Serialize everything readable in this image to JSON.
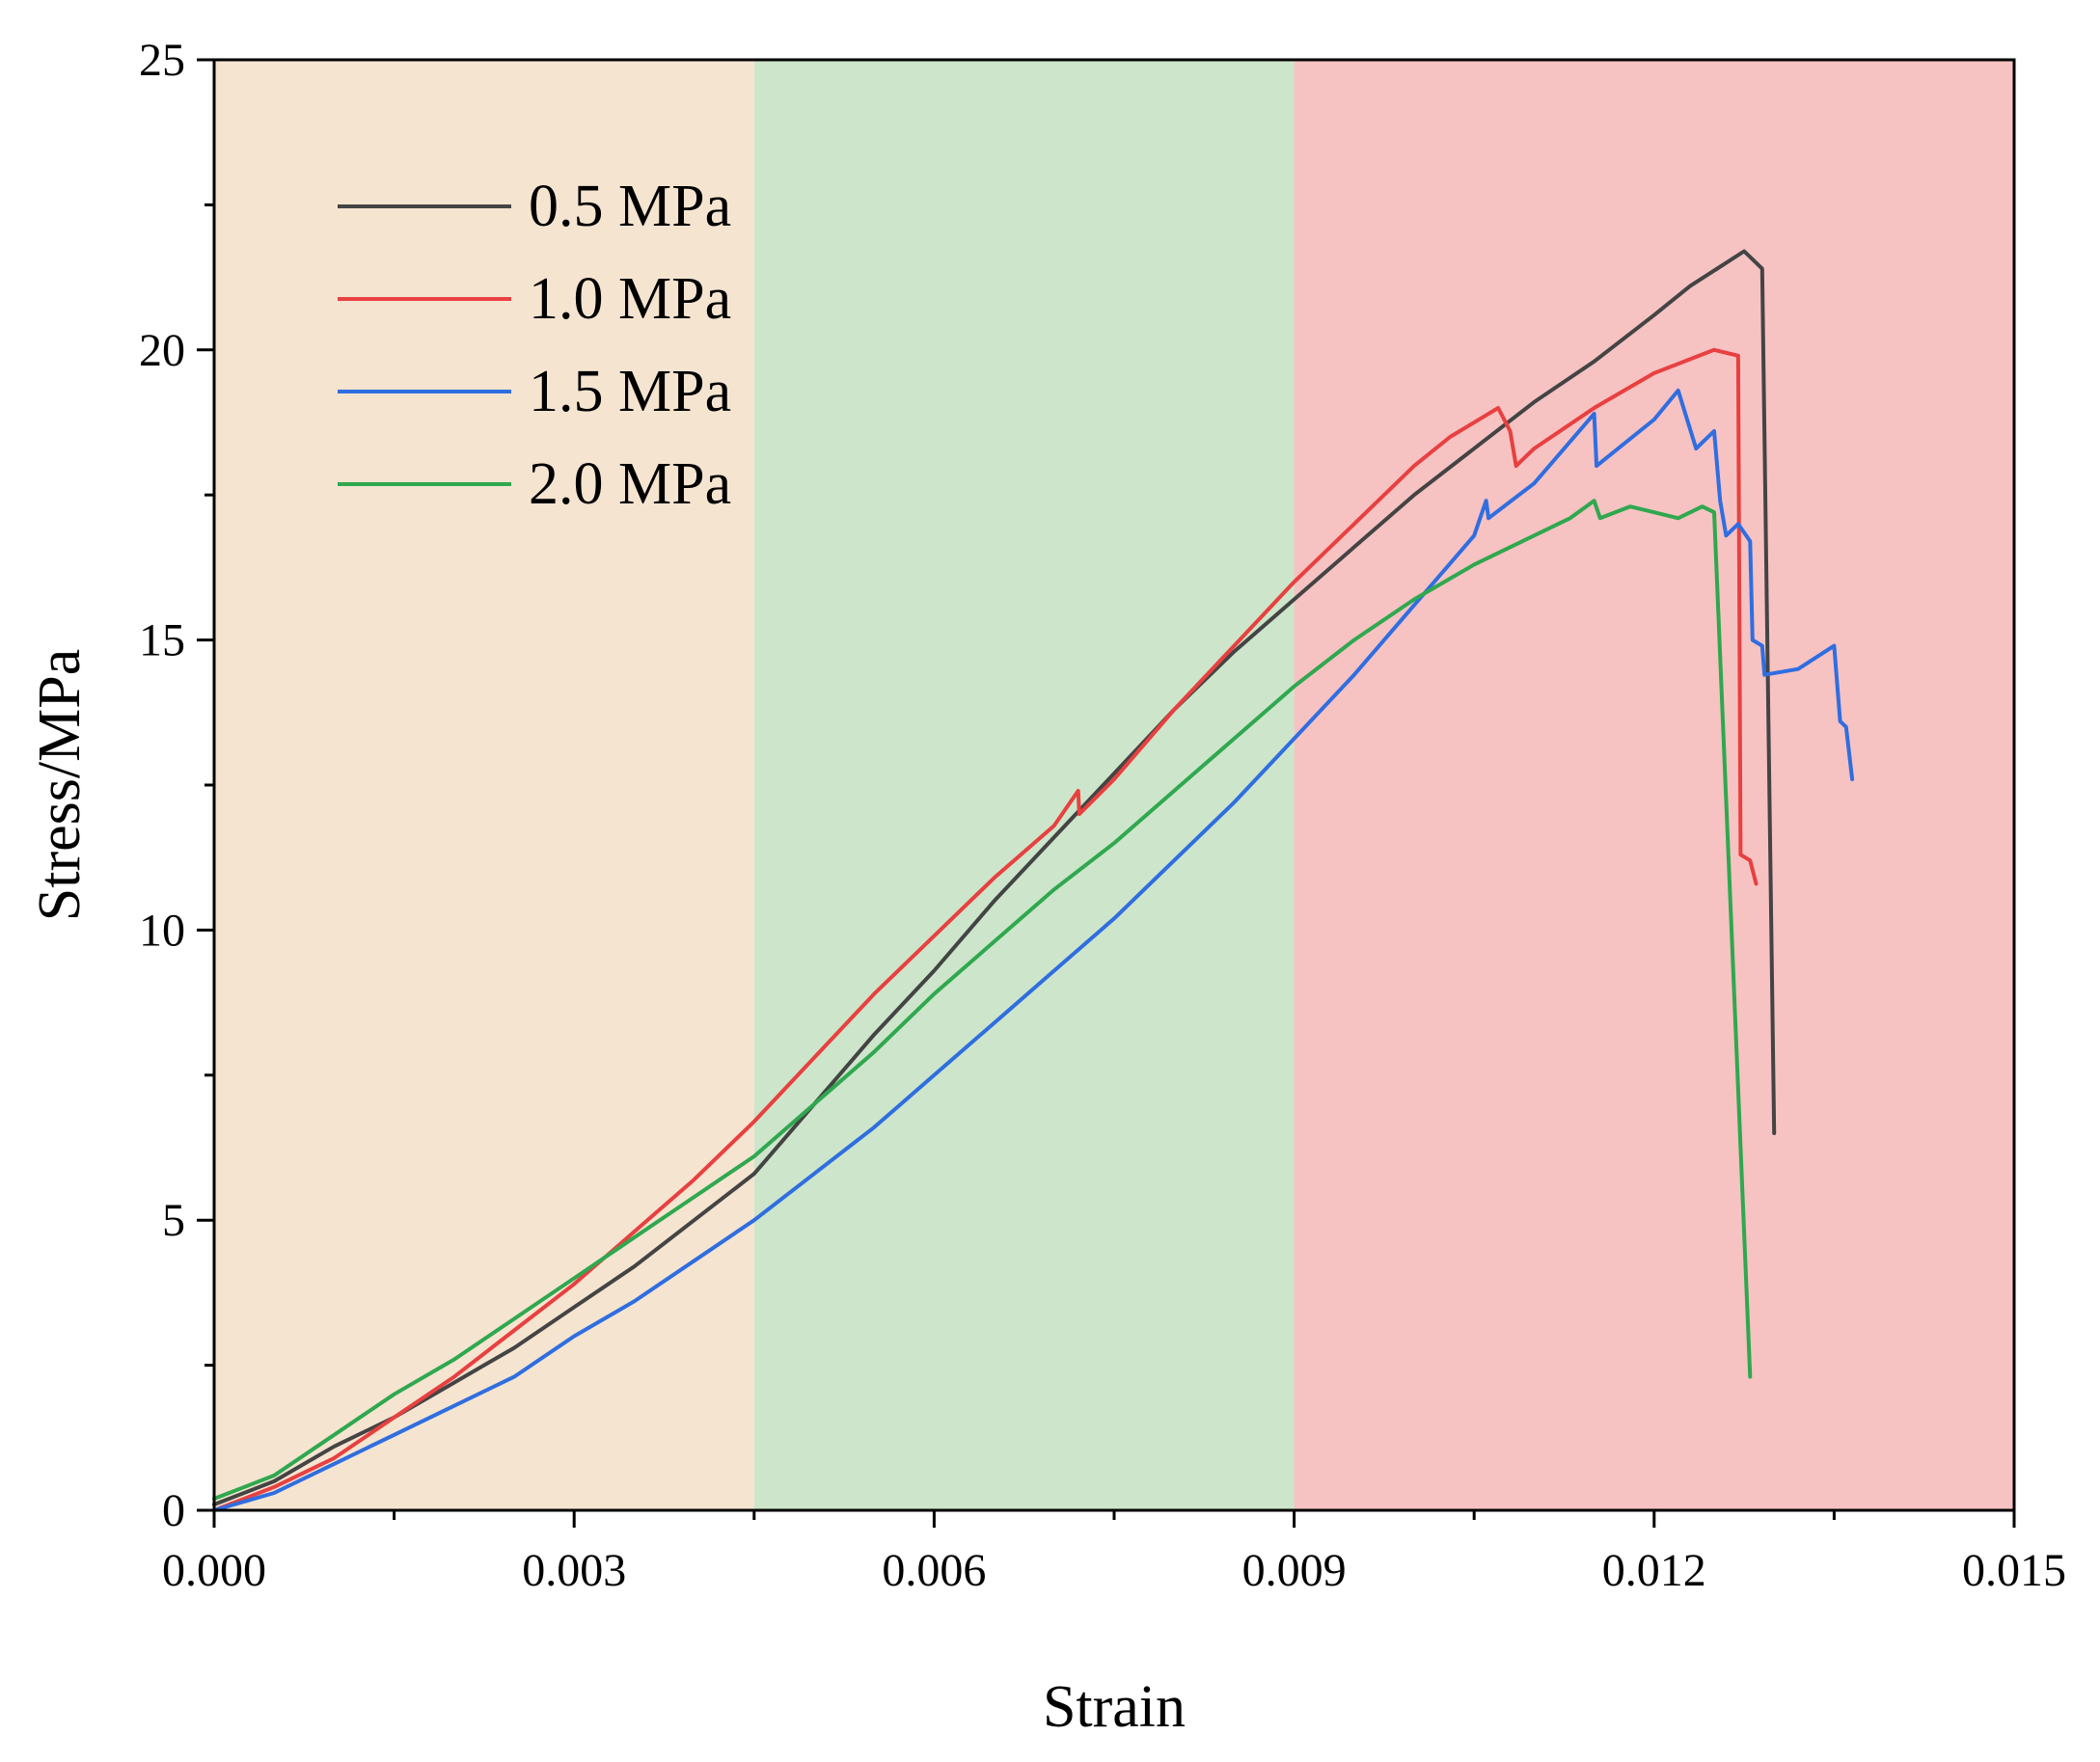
{
  "chart_data": {
    "type": "line",
    "title": "",
    "xlabel": "Strain",
    "ylabel": "Stress/MPa",
    "xlim": [
      0,
      0.015
    ],
    "ylim": [
      0,
      25
    ],
    "grid": false,
    "legend_position": "top-left",
    "x_ticks": [
      {
        "value": 0.0,
        "label": "0.000"
      },
      {
        "value": 0.003,
        "label": "0.003"
      },
      {
        "value": 0.006,
        "label": "0.006"
      },
      {
        "value": 0.009,
        "label": "0.009"
      },
      {
        "value": 0.012,
        "label": "0.012"
      },
      {
        "value": 0.015,
        "label": "0.015"
      }
    ],
    "y_ticks": [
      {
        "value": 0,
        "label": "0"
      },
      {
        "value": 5,
        "label": "5"
      },
      {
        "value": 10,
        "label": "10"
      },
      {
        "value": 15,
        "label": "15"
      },
      {
        "value": 20,
        "label": "20"
      },
      {
        "value": 25,
        "label": "25"
      }
    ],
    "regions": [
      {
        "x_start": 0.0,
        "x_end": 0.0045,
        "color": "#f5e4d0"
      },
      {
        "x_start": 0.0045,
        "x_end": 0.009,
        "color": "#cde5ca"
      },
      {
        "x_start": 0.009,
        "x_end": 0.015,
        "color": "#f7c2c2"
      }
    ],
    "series": [
      {
        "name": "0.5 MPa",
        "color": "#444444",
        "points": [
          [
            0.0,
            0.1
          ],
          [
            0.0005,
            0.5
          ],
          [
            0.001,
            1.1
          ],
          [
            0.0015,
            1.6
          ],
          [
            0.002,
            2.2
          ],
          [
            0.0025,
            2.8
          ],
          [
            0.003,
            3.5
          ],
          [
            0.0035,
            4.2
          ],
          [
            0.004,
            5.0
          ],
          [
            0.0045,
            5.8
          ],
          [
            0.005,
            7.0
          ],
          [
            0.0055,
            8.2
          ],
          [
            0.006,
            9.3
          ],
          [
            0.0065,
            10.5
          ],
          [
            0.007,
            11.6
          ],
          [
            0.0075,
            12.7
          ],
          [
            0.008,
            13.8
          ],
          [
            0.0085,
            14.8
          ],
          [
            0.009,
            15.7
          ],
          [
            0.0095,
            16.6
          ],
          [
            0.01,
            17.5
          ],
          [
            0.0105,
            18.3
          ],
          [
            0.011,
            19.1
          ],
          [
            0.0115,
            19.8
          ],
          [
            0.012,
            20.6
          ],
          [
            0.0123,
            21.1
          ],
          [
            0.0126,
            21.5
          ],
          [
            0.01275,
            21.7
          ],
          [
            0.0129,
            21.4
          ],
          [
            0.013,
            6.5
          ]
        ]
      },
      {
        "name": "1.0 MPa",
        "color": "#e84040",
        "points": [
          [
            0.0,
            0.0
          ],
          [
            0.0005,
            0.4
          ],
          [
            0.001,
            0.9
          ],
          [
            0.0015,
            1.6
          ],
          [
            0.002,
            2.3
          ],
          [
            0.0025,
            3.1
          ],
          [
            0.003,
            3.9
          ],
          [
            0.0035,
            4.8
          ],
          [
            0.004,
            5.7
          ],
          [
            0.0045,
            6.7
          ],
          [
            0.005,
            7.8
          ],
          [
            0.0055,
            8.9
          ],
          [
            0.006,
            9.9
          ],
          [
            0.0065,
            10.9
          ],
          [
            0.007,
            11.8
          ],
          [
            0.0072,
            12.4
          ],
          [
            0.00721,
            12.0
          ],
          [
            0.0075,
            12.6
          ],
          [
            0.008,
            13.8
          ],
          [
            0.0085,
            14.9
          ],
          [
            0.009,
            16.0
          ],
          [
            0.0095,
            17.0
          ],
          [
            0.01,
            18.0
          ],
          [
            0.0103,
            18.5
          ],
          [
            0.0107,
            19.0
          ],
          [
            0.0108,
            18.6
          ],
          [
            0.01085,
            18.0
          ],
          [
            0.011,
            18.3
          ],
          [
            0.0115,
            19.0
          ],
          [
            0.012,
            19.6
          ],
          [
            0.0125,
            20.0
          ],
          [
            0.0127,
            19.9
          ],
          [
            0.01272,
            11.3
          ],
          [
            0.0128,
            11.2
          ],
          [
            0.01285,
            10.8
          ]
        ]
      },
      {
        "name": "1.5 MPa",
        "color": "#2f6ee0",
        "points": [
          [
            0.0,
            0.0
          ],
          [
            0.0005,
            0.3
          ],
          [
            0.001,
            0.8
          ],
          [
            0.0015,
            1.3
          ],
          [
            0.002,
            1.8
          ],
          [
            0.0025,
            2.3
          ],
          [
            0.003,
            3.0
          ],
          [
            0.0035,
            3.6
          ],
          [
            0.004,
            4.3
          ],
          [
            0.0045,
            5.0
          ],
          [
            0.005,
            5.8
          ],
          [
            0.0055,
            6.6
          ],
          [
            0.006,
            7.5
          ],
          [
            0.0065,
            8.4
          ],
          [
            0.007,
            9.3
          ],
          [
            0.0075,
            10.2
          ],
          [
            0.008,
            11.2
          ],
          [
            0.0085,
            12.2
          ],
          [
            0.009,
            13.3
          ],
          [
            0.0095,
            14.4
          ],
          [
            0.01,
            15.6
          ],
          [
            0.0105,
            16.8
          ],
          [
            0.0106,
            17.4
          ],
          [
            0.01062,
            17.1
          ],
          [
            0.011,
            17.7
          ],
          [
            0.0115,
            18.9
          ],
          [
            0.01152,
            18.0
          ],
          [
            0.012,
            18.8
          ],
          [
            0.0122,
            19.3
          ],
          [
            0.01235,
            18.3
          ],
          [
            0.0125,
            18.6
          ],
          [
            0.01255,
            17.4
          ],
          [
            0.0126,
            16.8
          ],
          [
            0.0127,
            17.0
          ],
          [
            0.0128,
            16.7
          ],
          [
            0.01282,
            15.0
          ],
          [
            0.0129,
            14.9
          ],
          [
            0.01292,
            14.4
          ],
          [
            0.0132,
            14.5
          ],
          [
            0.0135,
            14.9
          ],
          [
            0.01355,
            13.6
          ],
          [
            0.0136,
            13.5
          ],
          [
            0.01365,
            12.6
          ]
        ]
      },
      {
        "name": "2.0 MPa",
        "color": "#2fa84f",
        "points": [
          [
            0.0,
            0.2
          ],
          [
            0.0005,
            0.6
          ],
          [
            0.001,
            1.3
          ],
          [
            0.0015,
            2.0
          ],
          [
            0.002,
            2.6
          ],
          [
            0.0025,
            3.3
          ],
          [
            0.003,
            4.0
          ],
          [
            0.0035,
            4.7
          ],
          [
            0.004,
            5.4
          ],
          [
            0.0045,
            6.1
          ],
          [
            0.005,
            7.0
          ],
          [
            0.0055,
            7.9
          ],
          [
            0.006,
            8.9
          ],
          [
            0.0065,
            9.8
          ],
          [
            0.007,
            10.7
          ],
          [
            0.0075,
            11.5
          ],
          [
            0.008,
            12.4
          ],
          [
            0.0085,
            13.3
          ],
          [
            0.009,
            14.2
          ],
          [
            0.0095,
            15.0
          ],
          [
            0.01,
            15.7
          ],
          [
            0.0105,
            16.3
          ],
          [
            0.011,
            16.8
          ],
          [
            0.0113,
            17.1
          ],
          [
            0.0115,
            17.4
          ],
          [
            0.01155,
            17.1
          ],
          [
            0.0118,
            17.3
          ],
          [
            0.012,
            17.2
          ],
          [
            0.0122,
            17.1
          ],
          [
            0.0124,
            17.3
          ],
          [
            0.0125,
            17.2
          ],
          [
            0.0128,
            2.3
          ]
        ]
      }
    ]
  }
}
